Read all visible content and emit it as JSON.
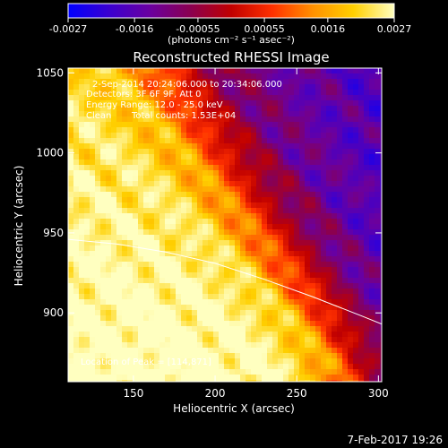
{
  "chart_data": {
    "type": "heatmap",
    "title": "Reconstructed RHESSI Image",
    "xlabel": "Heliocentric X (arcsec)",
    "ylabel": "Heliocentric Y (arcsec)",
    "xlim": [
      110,
      302
    ],
    "ylim": [
      857,
      1053
    ],
    "xticks": [
      150,
      200,
      250,
      300
    ],
    "xtick_labels": [
      "150",
      "200",
      "250",
      "300"
    ],
    "yticks": [
      900,
      950,
      1000,
      1050
    ],
    "ytick_labels": [
      "900",
      "950",
      "1000",
      "1050"
    ],
    "colorbar": {
      "min": -0.0027,
      "max": 0.0027,
      "ticks": [
        -0.0027,
        -0.0016,
        -0.00055,
        0.00055,
        0.0016,
        0.0027
      ],
      "tick_labels": [
        "-0.0027",
        "-0.0016",
        "-0.00055",
        "0.00055",
        "0.0016",
        "0.0027"
      ],
      "units_label": "(photons cm⁻² s⁻¹ asec⁻²)",
      "colors": [
        "#0000ff",
        "#3a00d0",
        "#6a00a0",
        "#8a0050",
        "#c00000",
        "#ff3000",
        "#ff9000",
        "#ffd000",
        "#ffffc0"
      ]
    },
    "annotations": {
      "time_range": "2-Sep-2014 20:24:06.000 to 20:34:06.000",
      "detectors": "Detectors: 3F 6F 9F, Att 0",
      "energy": "Energy Range: 12.0 - 25.0 keV",
      "clean": "Clean",
      "counts": "Total counts: 1.53E+04",
      "peak": "Location of Peak = [114,871]"
    },
    "limb": {
      "x": [
        110,
        140,
        170,
        200,
        230,
        260,
        290,
        302
      ],
      "y": [
        946,
        943,
        938,
        931,
        921,
        910,
        898,
        893
      ]
    },
    "source_region": {
      "peak": [
        114,
        871
      ],
      "edge_x_at_y": {
        "y": [
          1050,
          1000,
          960,
          930,
          900,
          870
        ],
        "x": [
          170,
          200,
          225,
          245,
          265,
          280
        ]
      }
    }
  },
  "footer": {
    "date": "7-Feb-2017 19:26"
  }
}
